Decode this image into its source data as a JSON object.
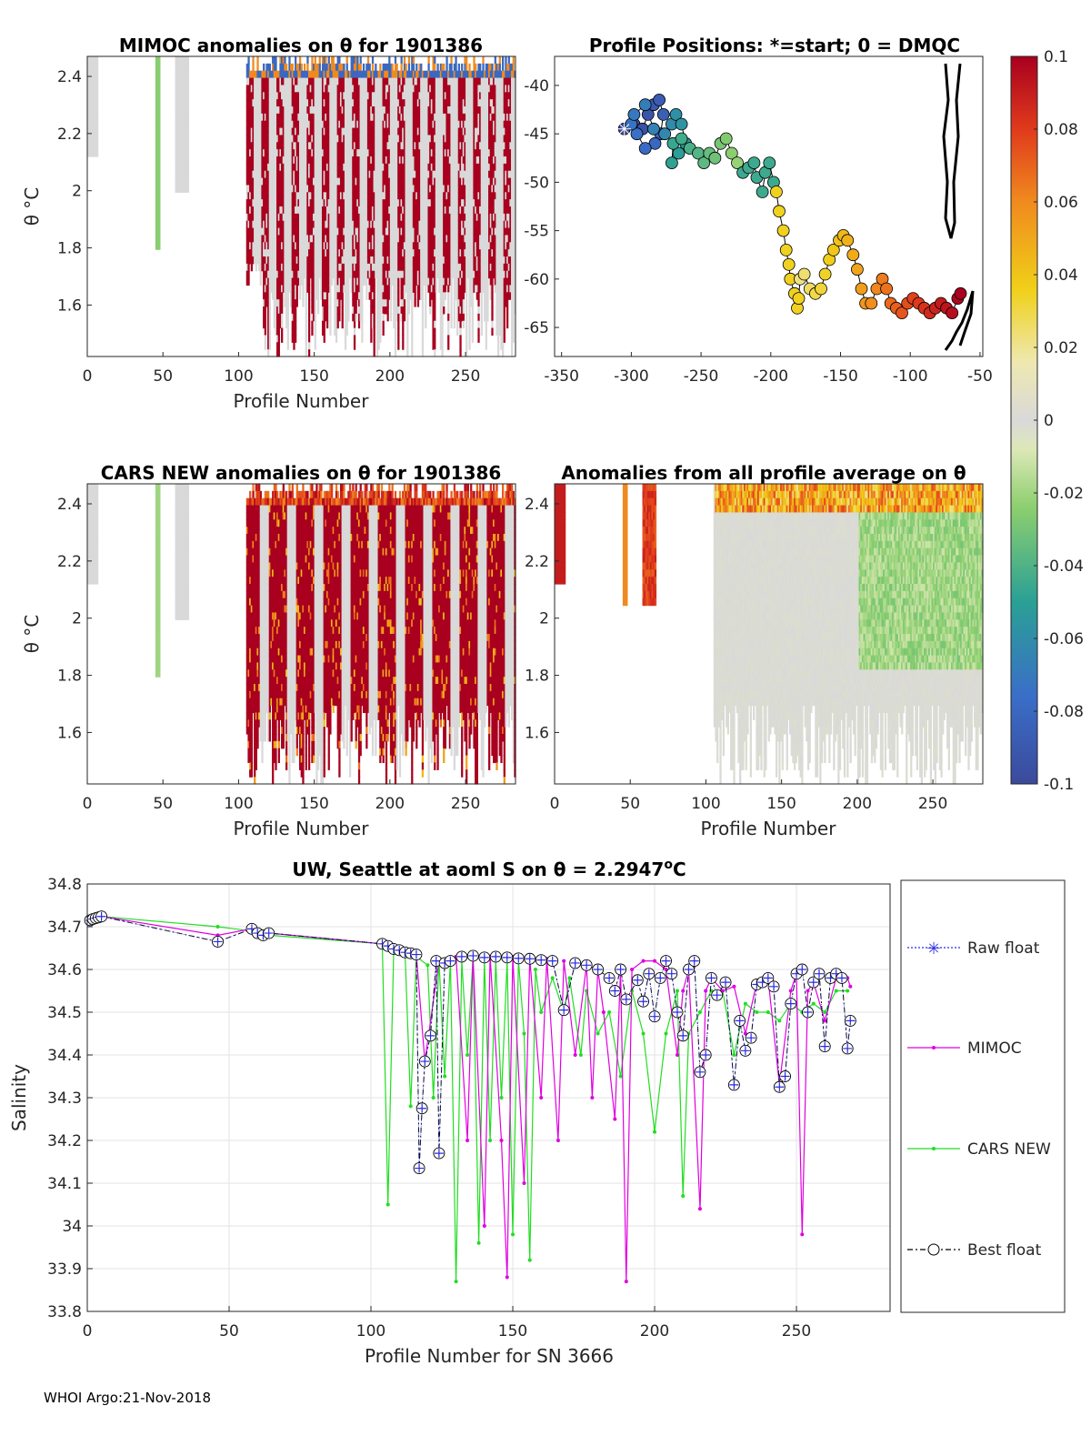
{
  "footer": "WHOI Argo:21-Nov-2018",
  "chart_data": [
    {
      "id": "mimoc",
      "type": "heatmap",
      "title": "MIMOC anomalies on θ  for 1901386",
      "xlabel": "Profile Number",
      "ylabel": "θ °C",
      "xlim": [
        0,
        283
      ],
      "ylim": [
        1.42,
        2.47
      ],
      "xticks": [
        "0",
        "50",
        "100",
        "150",
        "200",
        "250"
      ],
      "yticks": [
        "1.6",
        "1.8",
        "2",
        "2.2",
        "2.4"
      ]
    },
    {
      "id": "positions",
      "type": "scatter",
      "title": "Profile Positions: *=start; 0 = DMQC",
      "xlim": [
        -355,
        -48
      ],
      "ylim": [
        -68,
        -37
      ],
      "xticks": [
        "-350",
        "-300",
        "-250",
        "-200",
        "-150",
        "-100",
        "-50"
      ],
      "yticks": [
        "-40",
        "-45",
        "-50",
        "-55",
        "-60",
        "-65"
      ],
      "track": [
        [
          -305,
          -44.5
        ],
        [
          -298,
          -44
        ],
        [
          -292,
          -44.5
        ],
        [
          -288,
          -43
        ],
        [
          -284,
          -42
        ],
        [
          -280,
          -41.5
        ],
        [
          -277,
          -43
        ],
        [
          -279,
          -45
        ],
        [
          -283,
          -46
        ],
        [
          -290,
          -46.5
        ],
        [
          -296,
          -45
        ],
        [
          -300,
          -44
        ],
        [
          -298,
          -43
        ],
        [
          -290,
          -42
        ],
        [
          -284,
          -44.5
        ],
        [
          -276,
          -45
        ],
        [
          -271,
          -44
        ],
        [
          -268,
          -43
        ],
        [
          -264,
          -44
        ],
        [
          -261,
          -46
        ],
        [
          -266,
          -47
        ],
        [
          -271,
          -48
        ],
        [
          -270,
          -46
        ],
        [
          -264,
          -45.5
        ],
        [
          -258,
          -46.5
        ],
        [
          -252,
          -47
        ],
        [
          -248,
          -48
        ],
        [
          -244,
          -47
        ],
        [
          -240,
          -47.5
        ],
        [
          -236,
          -46
        ],
        [
          -232,
          -45.5
        ],
        [
          -228,
          -47
        ],
        [
          -224,
          -48
        ],
        [
          -220,
          -49
        ],
        [
          -216,
          -48.5
        ],
        [
          -212,
          -48
        ],
        [
          -210,
          -49.5
        ],
        [
          -206,
          -51
        ],
        [
          -204,
          -49
        ],
        [
          -201,
          -48
        ],
        [
          -198,
          -50
        ],
        [
          -196,
          -51
        ],
        [
          -194,
          -53
        ],
        [
          -191,
          -55
        ],
        [
          -189,
          -57
        ],
        [
          -187,
          -58.5
        ],
        [
          -186,
          -60
        ],
        [
          -183,
          -61.5
        ],
        [
          -181,
          -63
        ],
        [
          -180,
          -62
        ],
        [
          -179,
          -60
        ],
        [
          -176,
          -59.5
        ],
        [
          -172,
          -61
        ],
        [
          -168,
          -61.5
        ],
        [
          -164,
          -61
        ],
        [
          -161,
          -59.5
        ],
        [
          -158,
          -58
        ],
        [
          -155,
          -57
        ],
        [
          -151,
          -56
        ],
        [
          -148,
          -55.5
        ],
        [
          -145,
          -56
        ],
        [
          -141,
          -57.5
        ],
        [
          -138,
          -59
        ],
        [
          -135,
          -61
        ],
        [
          -132,
          -62.5
        ],
        [
          -128,
          -62.5
        ],
        [
          -124,
          -61
        ],
        [
          -120,
          -60
        ],
        [
          -117,
          -61
        ],
        [
          -114,
          -62.5
        ],
        [
          -110,
          -63
        ],
        [
          -106,
          -63.5
        ],
        [
          -102,
          -62.5
        ],
        [
          -98,
          -62
        ],
        [
          -94,
          -62.5
        ],
        [
          -90,
          -63
        ],
        [
          -86,
          -63.5
        ],
        [
          -82,
          -63
        ],
        [
          -78,
          -62.5
        ],
        [
          -74,
          -63
        ],
        [
          -70,
          -63.5
        ],
        [
          -66,
          -62
        ],
        [
          -64,
          -61.5
        ]
      ],
      "colorbar": {
        "min": -0.1,
        "max": 0.1,
        "ticks": [
          "0.1",
          "0.08",
          "0.06",
          "0.04",
          "0.02",
          "0",
          "-0.02",
          "-0.04",
          "-0.06",
          "-0.08",
          "-0.1"
        ]
      }
    },
    {
      "id": "cars",
      "type": "heatmap",
      "title": "CARS NEW anomalies on θ for 1901386",
      "xlabel": "Profile Number",
      "ylabel": "θ °C",
      "xlim": [
        0,
        283
      ],
      "ylim": [
        1.42,
        2.47
      ],
      "xticks": [
        "0",
        "50",
        "100",
        "150",
        "200",
        "250"
      ],
      "yticks": [
        "1.6",
        "1.8",
        "2",
        "2.2",
        "2.4"
      ]
    },
    {
      "id": "avg",
      "type": "heatmap",
      "title": "Anomalies from all profile average on θ",
      "xlabel": "Profile Number",
      "xlim": [
        0,
        283
      ],
      "ylim": [
        1.42,
        2.47
      ],
      "xticks": [
        "0",
        "50",
        "100",
        "150",
        "200",
        "250"
      ],
      "yticks": [
        "2.4",
        "2.2",
        "2",
        "1.8",
        "1.6"
      ]
    },
    {
      "id": "salinity",
      "type": "line",
      "title": "UW, Seattle at aoml S on θ = 2.2947",
      "title_sup": "o",
      "title_unit": "C",
      "xlabel": "Profile Number for SN 3666",
      "ylabel": "Salinity",
      "xlim": [
        0,
        283
      ],
      "ylim": [
        33.8,
        34.8
      ],
      "xticks": [
        "0",
        "50",
        "100",
        "150",
        "200",
        "250"
      ],
      "yticks": [
        "34.8",
        "34.7",
        "34.6",
        "34.5",
        "34.4",
        "34.3",
        "34.2",
        "34.1",
        "34",
        "33.9",
        "33.8"
      ],
      "legend": [
        "Raw float",
        "MIMOC",
        "CARS NEW",
        "Best float"
      ],
      "best_float": [
        [
          1,
          34.715
        ],
        [
          2,
          34.718
        ],
        [
          3,
          34.72
        ],
        [
          4,
          34.722
        ],
        [
          5,
          34.724
        ],
        [
          46,
          34.665
        ],
        [
          58,
          34.695
        ],
        [
          60,
          34.685
        ],
        [
          62,
          34.68
        ],
        [
          64,
          34.685
        ],
        [
          104,
          34.66
        ],
        [
          106,
          34.655
        ],
        [
          108,
          34.648
        ],
        [
          110,
          34.645
        ],
        [
          112,
          34.64
        ],
        [
          114,
          34.638
        ],
        [
          116,
          34.635
        ],
        [
          117,
          34.135
        ],
        [
          118,
          34.275
        ],
        [
          119,
          34.385
        ],
        [
          121,
          34.445
        ],
        [
          123,
          34.62
        ],
        [
          124,
          34.17
        ],
        [
          126,
          34.615
        ],
        [
          128,
          34.62
        ],
        [
          132,
          34.63
        ],
        [
          136,
          34.632
        ],
        [
          140,
          34.628
        ],
        [
          144,
          34.63
        ],
        [
          148,
          34.628
        ],
        [
          152,
          34.626
        ],
        [
          156,
          34.625
        ],
        [
          160,
          34.622
        ],
        [
          164,
          34.62
        ],
        [
          168,
          34.505
        ],
        [
          172,
          34.615
        ],
        [
          176,
          34.61
        ],
        [
          180,
          34.6
        ],
        [
          184,
          34.58
        ],
        [
          186,
          34.55
        ],
        [
          188,
          34.6
        ],
        [
          190,
          34.53
        ],
        [
          194,
          34.575
        ],
        [
          196,
          34.525
        ],
        [
          198,
          34.59
        ],
        [
          200,
          34.49
        ],
        [
          202,
          34.58
        ],
        [
          204,
          34.62
        ],
        [
          206,
          34.59
        ],
        [
          208,
          34.5
        ],
        [
          210,
          34.445
        ],
        [
          212,
          34.6
        ],
        [
          214,
          34.62
        ],
        [
          216,
          34.36
        ],
        [
          218,
          34.4
        ],
        [
          220,
          34.58
        ],
        [
          222,
          34.54
        ],
        [
          225,
          34.57
        ],
        [
          228,
          34.33
        ],
        [
          230,
          34.48
        ],
        [
          232,
          34.41
        ],
        [
          234,
          34.44
        ],
        [
          236,
          34.565
        ],
        [
          238,
          34.57
        ],
        [
          240,
          34.58
        ],
        [
          242,
          34.56
        ],
        [
          244,
          34.325
        ],
        [
          246,
          34.35
        ],
        [
          248,
          34.52
        ],
        [
          250,
          34.59
        ],
        [
          252,
          34.6
        ],
        [
          254,
          34.5
        ],
        [
          256,
          34.57
        ],
        [
          258,
          34.59
        ],
        [
          260,
          34.42
        ],
        [
          262,
          34.58
        ],
        [
          264,
          34.59
        ],
        [
          266,
          34.58
        ],
        [
          268,
          34.415
        ],
        [
          269,
          34.48
        ]
      ],
      "mimoc": [
        [
          1,
          34.715
        ],
        [
          5,
          34.724
        ],
        [
          46,
          34.68
        ],
        [
          58,
          34.695
        ],
        [
          64,
          34.685
        ],
        [
          104,
          34.66
        ],
        [
          110,
          34.645
        ],
        [
          116,
          34.635
        ],
        [
          119,
          34.385
        ],
        [
          124,
          34.62
        ],
        [
          130,
          34.63
        ],
        [
          134,
          34.2
        ],
        [
          136,
          34.63
        ],
        [
          140,
          34.0
        ],
        [
          142,
          34.63
        ],
        [
          146,
          34.2
        ],
        [
          148,
          33.88
        ],
        [
          150,
          34.63
        ],
        [
          154,
          34.1
        ],
        [
          156,
          34.625
        ],
        [
          160,
          34.3
        ],
        [
          162,
          34.625
        ],
        [
          166,
          34.2
        ],
        [
          168,
          34.62
        ],
        [
          172,
          34.4
        ],
        [
          176,
          34.61
        ],
        [
          178,
          34.3
        ],
        [
          180,
          34.6
        ],
        [
          182,
          34.5
        ],
        [
          186,
          34.25
        ],
        [
          188,
          34.6
        ],
        [
          190,
          33.87
        ],
        [
          192,
          34.6
        ],
        [
          196,
          34.62
        ],
        [
          200,
          34.62
        ],
        [
          204,
          34.6
        ],
        [
          208,
          34.4
        ],
        [
          210,
          34.55
        ],
        [
          212,
          34.6
        ],
        [
          216,
          34.04
        ],
        [
          218,
          34.55
        ],
        [
          220,
          34.58
        ],
        [
          224,
          34.55
        ],
        [
          228,
          34.56
        ],
        [
          232,
          34.45
        ],
        [
          236,
          34.57
        ],
        [
          240,
          34.58
        ],
        [
          244,
          34.33
        ],
        [
          248,
          34.55
        ],
        [
          250,
          34.59
        ],
        [
          252,
          33.98
        ],
        [
          254,
          34.55
        ],
        [
          256,
          34.57
        ],
        [
          260,
          34.48
        ],
        [
          264,
          34.58
        ],
        [
          268,
          34.58
        ],
        [
          269,
          34.56
        ]
      ],
      "cars": [
        [
          1,
          34.715
        ],
        [
          5,
          34.724
        ],
        [
          46,
          34.7
        ],
        [
          58,
          34.69
        ],
        [
          64,
          34.68
        ],
        [
          104,
          34.66
        ],
        [
          106,
          34.05
        ],
        [
          108,
          34.64
        ],
        [
          112,
          34.64
        ],
        [
          114,
          34.28
        ],
        [
          116,
          34.63
        ],
        [
          120,
          34.61
        ],
        [
          122,
          34.3
        ],
        [
          124,
          34.62
        ],
        [
          126,
          34.35
        ],
        [
          128,
          34.62
        ],
        [
          130,
          33.87
        ],
        [
          132,
          34.62
        ],
        [
          134,
          34.4
        ],
        [
          136,
          34.63
        ],
        [
          138,
          33.96
        ],
        [
          140,
          34.62
        ],
        [
          142,
          34.2
        ],
        [
          144,
          34.62
        ],
        [
          146,
          34.3
        ],
        [
          148,
          34.62
        ],
        [
          150,
          33.98
        ],
        [
          152,
          34.62
        ],
        [
          154,
          34.45
        ],
        [
          156,
          33.92
        ],
        [
          158,
          34.6
        ],
        [
          160,
          34.5
        ],
        [
          164,
          34.58
        ],
        [
          168,
          34.5
        ],
        [
          170,
          34.58
        ],
        [
          174,
          34.4
        ],
        [
          176,
          34.55
        ],
        [
          180,
          34.45
        ],
        [
          184,
          34.5
        ],
        [
          188,
          34.35
        ],
        [
          192,
          34.55
        ],
        [
          196,
          34.45
        ],
        [
          200,
          34.22
        ],
        [
          204,
          34.45
        ],
        [
          208,
          34.55
        ],
        [
          210,
          34.07
        ],
        [
          212,
          34.45
        ],
        [
          216,
          34.5
        ],
        [
          220,
          34.55
        ],
        [
          224,
          34.55
        ],
        [
          228,
          34.4
        ],
        [
          232,
          34.52
        ],
        [
          236,
          34.5
        ],
        [
          240,
          34.5
        ],
        [
          244,
          34.48
        ],
        [
          248,
          34.52
        ],
        [
          252,
          34.5
        ],
        [
          256,
          34.52
        ],
        [
          260,
          34.5
        ],
        [
          264,
          34.55
        ],
        [
          268,
          34.55
        ]
      ]
    }
  ]
}
